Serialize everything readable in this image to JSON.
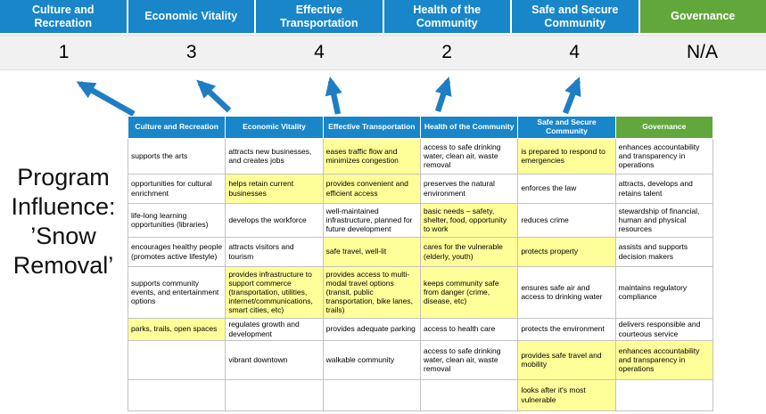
{
  "title": "Program Influence: ’Snow Removal’",
  "colors": {
    "blue": "#1886c9",
    "green": "#62a73c",
    "highlight": "#ffff99",
    "arrow": "#1f7ec1",
    "scorebg": "#f1f1f2"
  },
  "summary": {
    "columns": [
      {
        "label": "Culture and Recreation",
        "score": "1",
        "theme": "blue"
      },
      {
        "label": "Economic Vitality",
        "score": "3",
        "theme": "blue"
      },
      {
        "label": "Effective Transportation",
        "score": "4",
        "theme": "blue"
      },
      {
        "label": "Health of the Community",
        "score": "2",
        "theme": "blue"
      },
      {
        "label": "Safe and Secure Community",
        "score": "4",
        "theme": "blue"
      },
      {
        "label": "Governance",
        "score": "N/A",
        "theme": "green"
      }
    ]
  },
  "matrix": {
    "headers": [
      {
        "label": "Culture and Recreation",
        "theme": "blue"
      },
      {
        "label": "Economic Vitality",
        "theme": "blue"
      },
      {
        "label": "Effective Transportation",
        "theme": "blue"
      },
      {
        "label": "Health of the Community",
        "theme": "blue"
      },
      {
        "label": "Safe and Secure Community",
        "theme": "blue"
      },
      {
        "label": "Governance",
        "theme": "green"
      }
    ],
    "rows": [
      [
        {
          "text": "supports the arts"
        },
        {
          "text": "attracts new businesses, and creates jobs"
        },
        {
          "text": "eases traffic flow and minimizes congestion",
          "highlight": true
        },
        {
          "text": "access to safe drinking water, clean air, waste removal"
        },
        {
          "text": "is prepared to respond to emergencies",
          "highlight": true
        },
        {
          "text": "enhances accountability and transparency in operations"
        }
      ],
      [
        {
          "text": "opportunities for cultural enrichment"
        },
        {
          "text": "helps retain current businesses",
          "highlight": true
        },
        {
          "text": "provides convenient and efficient access",
          "highlight": true
        },
        {
          "text": "preserves the natural environment"
        },
        {
          "text": "enforces the law"
        },
        {
          "text": "attracts, develops and retains talent"
        }
      ],
      [
        {
          "text": "life-long learning opportunities (libraries)"
        },
        {
          "text": "develops the workforce"
        },
        {
          "text": "well-maintained infrastructure, planned for future development"
        },
        {
          "text": "basic needs – safety, shelter, food, opportunity to work",
          "highlight": true
        },
        {
          "text": "reduces crime"
        },
        {
          "text": "stewardship of financial, human and physical resources"
        }
      ],
      [
        {
          "text": "encourages healthy people (promotes active lifestyle)"
        },
        {
          "text": "attracts visitors and tourism"
        },
        {
          "text": "safe travel, well-lit",
          "highlight": true
        },
        {
          "text": "cares for the vulnerable (elderly, youth)",
          "highlight": true
        },
        {
          "text": "protects property",
          "highlight": true
        },
        {
          "text": "assists and supports decision makers"
        }
      ],
      [
        {
          "text": "supports community events, and entertainment options"
        },
        {
          "text": "provides infrastructure to support commerce (transportation, utilities, internet/communications, smart cities, etc)",
          "highlight": true
        },
        {
          "text": "provides access to multi-modal travel options (transit, public transportation, bike lanes, trails)",
          "highlight": true
        },
        {
          "text": "keeps community safe from danger (crime, disease, etc)",
          "highlight": true
        },
        {
          "text": "ensures safe air and access to drinking water"
        },
        {
          "text": "maintains regulatory compliance"
        }
      ],
      [
        {
          "text": "parks, trails, open spaces",
          "highlight": true
        },
        {
          "text": "regulates growth and development"
        },
        {
          "text": "provides adequate parking"
        },
        {
          "text": "access to health care"
        },
        {
          "text": "protects the environment"
        },
        {
          "text": "delivers responsible and courteous service"
        }
      ],
      [
        {
          "text": ""
        },
        {
          "text": "vibrant downtown"
        },
        {
          "text": "walkable community"
        },
        {
          "text": "access to safe drinking water, clean air, waste removal"
        },
        {
          "text": "provides safe travel and mobility",
          "highlight": true
        },
        {
          "text": "enhances accountability and transparency in operations",
          "highlight": true
        }
      ],
      [
        {
          "text": ""
        },
        {
          "text": ""
        },
        {
          "text": ""
        },
        {
          "text": ""
        },
        {
          "text": "looks after it's most vulnerable",
          "highlight": true
        },
        {
          "text": ""
        }
      ]
    ]
  }
}
